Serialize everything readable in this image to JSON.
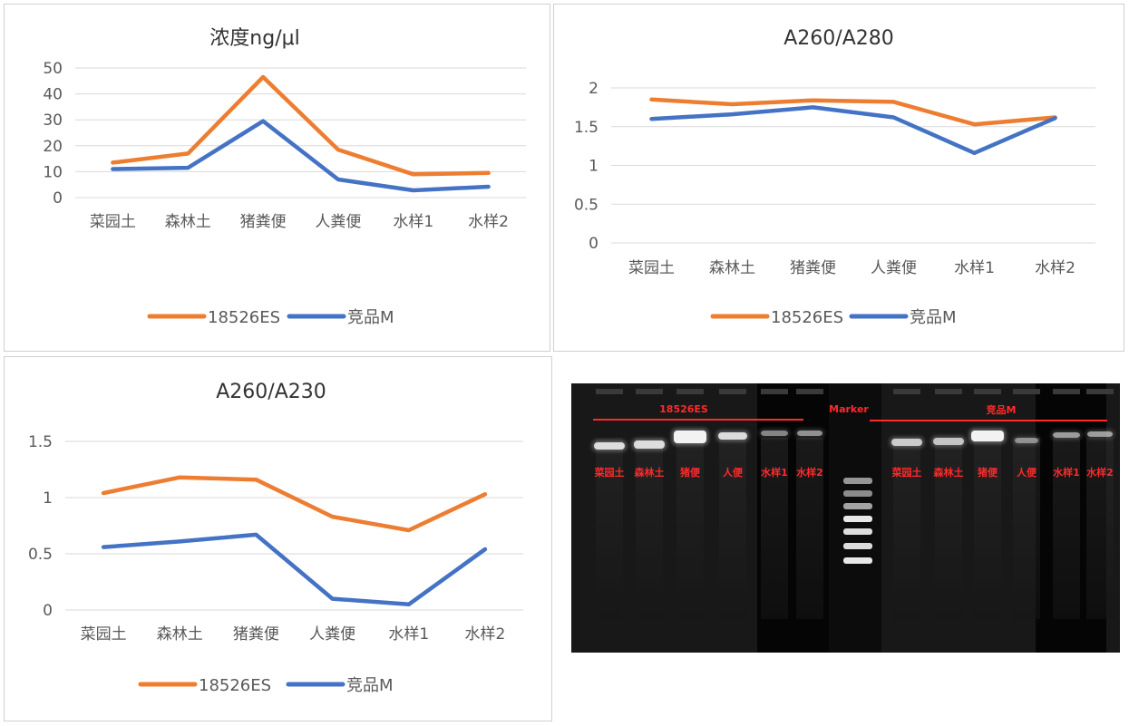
{
  "colors": {
    "series_a": "#ED7D31",
    "series_b": "#4472C4"
  },
  "chart_data": [
    {
      "type": "line",
      "title": "浓度ng/μl",
      "categories": [
        "菜园土",
        "森林土",
        "猪粪便",
        "人粪便",
        "水样1",
        "水样2"
      ],
      "series": [
        {
          "name": "18526ES",
          "values": [
            13.5,
            17,
            46.5,
            18.5,
            9,
            9.5
          ]
        },
        {
          "name": "竞品M",
          "values": [
            11,
            11.5,
            29.5,
            7,
            2.8,
            4.2
          ]
        }
      ],
      "yticks": [
        "0",
        "10",
        "20",
        "30",
        "40",
        "50"
      ],
      "ylim": [
        0,
        50
      ],
      "grid": true,
      "legend": "bottom"
    },
    {
      "type": "line",
      "title": "A260/A280",
      "categories": [
        "菜园土",
        "森林土",
        "猪粪便",
        "人粪便",
        "水样1",
        "水样2"
      ],
      "series": [
        {
          "name": "18526ES",
          "values": [
            1.85,
            1.79,
            1.84,
            1.82,
            1.53,
            1.62
          ]
        },
        {
          "name": "竞品M",
          "values": [
            1.6,
            1.66,
            1.75,
            1.62,
            1.16,
            1.61
          ]
        }
      ],
      "yticks": [
        "0",
        "0.5",
        "1",
        "1.5",
        "2"
      ],
      "ylim": [
        0,
        2
      ],
      "grid": true,
      "legend": "bottom"
    },
    {
      "type": "line",
      "title": "A260/A230",
      "categories": [
        "菜园土",
        "森林土",
        "猪粪便",
        "人粪便",
        "水样1",
        "水样2"
      ],
      "series": [
        {
          "name": "18526ES",
          "values": [
            1.04,
            1.18,
            1.16,
            0.83,
            0.71,
            1.03
          ]
        },
        {
          "name": "竞品M",
          "values": [
            0.56,
            0.61,
            0.67,
            0.1,
            0.05,
            0.54
          ]
        }
      ],
      "yticks": [
        "0",
        "0.5",
        "1",
        "1.5"
      ],
      "ylim": [
        0,
        1.5
      ],
      "grid": true,
      "legend": "bottom"
    }
  ],
  "gel": {
    "group_left": "18526ES",
    "marker_label": "Marker",
    "group_right": "竞品M",
    "lanes_left": [
      "菜园土",
      "森林土",
      "猪便",
      "人便",
      "水样1",
      "水样2"
    ],
    "lanes_right": [
      "菜园土",
      "森林土",
      "猪便",
      "人便",
      "水样1",
      "水样2"
    ]
  }
}
